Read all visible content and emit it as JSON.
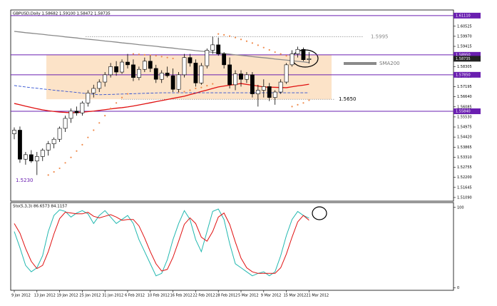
{
  "chart_data": {
    "type": "candlestick",
    "title": "GBPUSD,Daily  1.58682 1.59100 1.58472 1.58735",
    "categories": [
      "9 Jan 2012",
      null,
      null,
      null,
      "13 Jan 2012",
      null,
      null,
      null,
      "19 Jan 2012",
      null,
      null,
      null,
      "25 Jan 2012",
      null,
      null,
      null,
      "31 Jan 2012",
      null,
      null,
      null,
      "6 Feb 2012",
      null,
      null,
      null,
      "10 Feb 2012",
      null,
      null,
      null,
      "16 Feb 2012",
      null,
      null,
      null,
      "22 Feb 2012",
      null,
      null,
      null,
      "28 Feb 2012",
      null,
      null,
      null,
      "5 Mar 2012",
      null,
      null,
      null,
      "9 Mar 2012",
      null,
      null,
      null,
      "15 Mar 2012",
      null,
      null,
      null,
      "21 Mar 2012"
    ],
    "open": [
      1.546,
      1.548,
      1.532,
      1.5345,
      1.531,
      1.5335,
      1.537,
      1.5405,
      1.543,
      1.549,
      1.5545,
      1.5585,
      1.5575,
      1.563,
      1.5685,
      1.571,
      1.5745,
      1.5785,
      1.583,
      1.58,
      1.5855,
      1.584,
      1.577,
      1.5815,
      1.586,
      1.582,
      1.576,
      1.5795,
      1.578,
      1.5705,
      1.5785,
      1.588,
      1.585,
      1.574,
      1.5835,
      1.592,
      1.595,
      1.59,
      1.584,
      1.573,
      1.579,
      1.576,
      1.5785,
      1.568,
      1.57,
      1.572,
      1.566,
      1.569,
      1.5745,
      1.584,
      1.59,
      1.5925,
      1.58682
    ],
    "high": [
      1.5495,
      1.55,
      1.536,
      1.537,
      1.536,
      1.538,
      1.542,
      1.544,
      1.55,
      1.556,
      1.56,
      1.561,
      1.564,
      1.57,
      1.573,
      1.576,
      1.58,
      1.585,
      1.586,
      1.587,
      1.59,
      1.587,
      1.583,
      1.588,
      1.589,
      1.584,
      1.581,
      1.583,
      1.582,
      1.58,
      1.59,
      1.59,
      1.587,
      1.585,
      1.593,
      1.5995,
      1.599,
      1.591,
      1.588,
      1.581,
      1.581,
      1.58,
      1.58,
      1.573,
      1.576,
      1.574,
      1.57,
      1.576,
      1.585,
      1.592,
      1.594,
      1.5935,
      1.591
    ],
    "low": [
      1.543,
      1.53,
      1.529,
      1.53,
      1.5233,
      1.531,
      1.534,
      1.538,
      1.5415,
      1.547,
      1.552,
      1.556,
      1.556,
      1.561,
      1.566,
      1.569,
      1.572,
      1.577,
      1.578,
      1.579,
      1.582,
      1.575,
      1.5755,
      1.58,
      1.58,
      1.574,
      1.574,
      1.577,
      1.569,
      1.569,
      1.577,
      1.583,
      1.572,
      1.573,
      1.582,
      1.59,
      1.589,
      1.582,
      1.571,
      1.57,
      1.572,
      1.574,
      1.566,
      1.561,
      1.566,
      1.564,
      1.562,
      1.568,
      1.5735,
      1.583,
      1.588,
      1.586,
      1.58472
    ],
    "close": [
      1.548,
      1.532,
      1.5345,
      1.531,
      1.5335,
      1.537,
      1.5405,
      1.543,
      1.549,
      1.5545,
      1.5585,
      1.5575,
      1.563,
      1.5685,
      1.571,
      1.5745,
      1.5785,
      1.583,
      1.58,
      1.5855,
      1.584,
      1.577,
      1.5815,
      1.586,
      1.582,
      1.576,
      1.5795,
      1.578,
      1.5705,
      1.5785,
      1.588,
      1.585,
      1.574,
      1.5835,
      1.592,
      1.595,
      1.59,
      1.584,
      1.573,
      1.579,
      1.576,
      1.5785,
      1.568,
      1.57,
      1.572,
      1.566,
      1.569,
      1.5745,
      1.584,
      1.59,
      1.5925,
      1.5868,
      1.58735
    ],
    "bull_color": "#ffffff",
    "bear_color": "#000000",
    "lines": [
      {
        "label": "SMA200",
        "color": "#8a8a8a",
        "values": [
          1.6024,
          1.6021,
          1.6017,
          1.6014,
          1.6011,
          1.6008,
          1.6004,
          1.6001,
          1.5998,
          1.5994,
          1.5991,
          1.5988,
          1.5984,
          1.5981,
          1.5978,
          1.5975,
          1.5971,
          1.5968,
          1.5965,
          1.5961,
          1.5958,
          1.5955,
          1.5951,
          1.5948,
          1.5945,
          1.5942,
          1.5938,
          1.5935,
          1.5932,
          1.5928,
          1.5925,
          1.5922,
          1.5918,
          1.5915,
          1.5912,
          1.5909,
          1.5905,
          1.5902,
          1.5899,
          1.5895,
          1.5892,
          1.5889,
          1.5885,
          1.5882,
          1.5879,
          1.5876,
          1.5872,
          1.5869,
          1.5866,
          1.5862,
          1.5859,
          1.5856,
          1.5852
        ]
      },
      {
        "color": "#e01010",
        "values": [
          1.5627,
          1.562,
          1.5612,
          1.5605,
          1.5598,
          1.5592,
          1.5587,
          1.5583,
          1.558,
          1.5578,
          1.5576,
          1.5577,
          1.5579,
          1.5582,
          1.5585,
          1.5589,
          1.5593,
          1.5597,
          1.5601,
          1.5604,
          1.5608,
          1.5613,
          1.5619,
          1.5625,
          1.5631,
          1.5637,
          1.5643,
          1.5649,
          1.5655,
          1.5661,
          1.5667,
          1.5676,
          1.5684,
          1.5693,
          1.5701,
          1.571,
          1.5718,
          1.5723,
          1.5728,
          1.5732,
          1.5737,
          1.5732,
          1.5728,
          1.5723,
          1.5718,
          1.5717,
          1.5716,
          1.5715,
          1.5714,
          1.5719,
          1.5724,
          1.5728,
          1.5733
        ]
      },
      {
        "color": "#3050d0",
        "dashed": true,
        "values": [
          1.5726,
          1.5722,
          1.5718,
          1.5714,
          1.5711,
          1.5707,
          1.5704,
          1.57,
          1.5697,
          1.5694,
          1.5691,
          1.5688,
          1.5684,
          1.5681,
          1.5678,
          1.5675,
          1.5676,
          1.5677,
          1.5678,
          1.5679,
          1.568,
          1.5681,
          1.5682,
          1.5683,
          1.5684,
          1.5685,
          1.5686,
          1.5686,
          1.5686,
          1.5686,
          1.5686,
          1.5686,
          1.5686,
          1.5686,
          1.5686,
          1.5686,
          1.5686,
          1.5686,
          1.5686,
          1.5686,
          1.5686,
          1.5686,
          1.5686,
          1.5686,
          1.5686,
          1.5686,
          1.5686,
          1.5686,
          1.5686,
          1.5686,
          1.5686,
          1.5686,
          1.5686
        ]
      }
    ],
    "sar": {
      "color": "#f08a4b",
      "values": [
        null,
        null,
        null,
        null,
        null,
        null,
        1.5233,
        1.525,
        1.527,
        1.53,
        1.533,
        1.5365,
        1.54,
        1.544,
        1.548,
        1.552,
        1.556,
        1.56,
        1.563,
        1.566,
        1.568,
        1.59,
        1.5898,
        1.5895,
        1.5892,
        1.589,
        1.5885,
        1.588,
        1.5875,
        1.569,
        1.5692,
        1.57,
        1.571,
        1.5715,
        1.5725,
        1.5735,
        1.601,
        1.6005,
        1.5998,
        1.599,
        1.598,
        1.597,
        1.596,
        1.5948,
        1.5935,
        1.5922,
        1.591,
        1.59,
        1.589,
        1.561,
        1.562,
        1.563,
        1.5645
      ]
    },
    "levels_color": "#6a1fb0",
    "levels": [
      {
        "value": 1.6111,
        "label": "1.61110"
      },
      {
        "value": 1.5895,
        "label": "1.58950"
      },
      {
        "value": 1.5785,
        "label": "1.57850"
      },
      {
        "value": 1.5584,
        "label": "1.55840"
      }
    ],
    "last_price": {
      "value": 1.58735,
      "label": "1.58735"
    },
    "annotations": [
      {
        "text": "1.5995",
        "value": 1.5995
      },
      {
        "text": "1.5650",
        "value": 1.565
      },
      {
        "text": "1.5230",
        "value": 1.523
      }
    ],
    "ylim": [
      1.5089,
      1.6142
    ],
    "yticks": [
      {
        "value": 1.5109,
        "label": "1.51090"
      },
      {
        "value": 1.51645,
        "label": "1.51645"
      },
      {
        "value": 1.522,
        "label": "1.52200"
      },
      {
        "value": 1.52755,
        "label": "1.52755"
      },
      {
        "value": 1.5331,
        "label": "1.53310"
      },
      {
        "value": 1.53865,
        "label": "1.53865"
      },
      {
        "value": 1.5442,
        "label": "1.54420"
      },
      {
        "value": 1.54975,
        "label": "1.54975"
      },
      {
        "value": 1.5553,
        "label": "1.55530"
      },
      {
        "value": 1.56085,
        "label": "1.56085"
      },
      {
        "value": 1.5664,
        "label": "1.56640"
      },
      {
        "value": 1.57195,
        "label": "1.57195"
      },
      {
        "value": 1.5775,
        "label": "1.57750"
      },
      {
        "value": 1.58305,
        "label": "1.58305"
      },
      {
        "value": 1.59415,
        "label": "1.59415"
      },
      {
        "value": 1.5997,
        "label": "1.59970"
      },
      {
        "value": 1.60525,
        "label": "1.60525"
      }
    ],
    "stochastic": {
      "label": "Sto(5,3,3) 86.6573 84.1157",
      "ylim": [
        -3,
        106
      ],
      "yticks": [
        0,
        100
      ],
      "series": [
        {
          "color": "#22b8b0",
          "values": [
            70,
            50,
            28,
            20,
            25,
            40,
            70,
            90,
            97,
            95,
            88,
            93,
            96,
            92,
            80,
            90,
            96,
            88,
            80,
            85,
            90,
            80,
            60,
            45,
            30,
            15,
            18,
            35,
            60,
            80,
            96,
            85,
            60,
            45,
            70,
            95,
            98,
            85,
            55,
            30,
            25,
            20,
            15,
            18,
            20,
            15,
            20,
            40,
            65,
            85,
            95,
            90,
            86.6573
          ]
        },
        {
          "color": "#e01010",
          "values": [
            80,
            68,
            49,
            33,
            24,
            28,
            45,
            67,
            86,
            94,
            93,
            92,
            92,
            94,
            89,
            87,
            89,
            91,
            88,
            84,
            85,
            85,
            77,
            62,
            45,
            30,
            21,
            23,
            38,
            58,
            79,
            87,
            80,
            63,
            58,
            70,
            88,
            93,
            79,
            57,
            37,
            25,
            20,
            18,
            18,
            18,
            18,
            25,
            42,
            63,
            82,
            90,
            84.1157
          ]
        }
      ]
    }
  }
}
